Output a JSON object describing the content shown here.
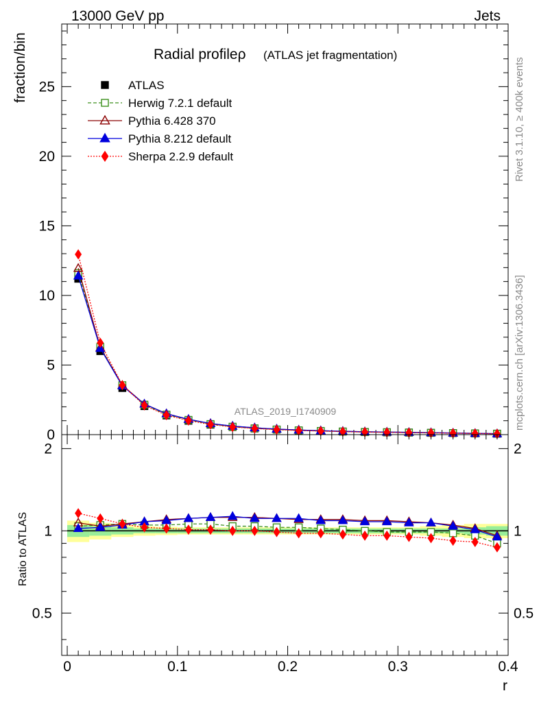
{
  "header": {
    "left_label": "13000 GeV pp",
    "right_label": "Jets",
    "title": "Radial profileρ",
    "title_suffix": "(ATLAS jet fragmentation)",
    "rivet_label": "Rivet 3.1.10, ≥ 400k events",
    "mcplots_label": "mcplots.cern.ch [arXiv:1306.3436]",
    "analysis_label": "ATLAS_2019_I1740909"
  },
  "legend": [
    {
      "name": "ATLAS",
      "color": "#000000",
      "marker": "square-filled",
      "line": "none"
    },
    {
      "name": "Herwig 7.2.1 default",
      "color": "#3a8f1b",
      "marker": "square-open",
      "line": "dashed"
    },
    {
      "name": "Pythia 6.428 370",
      "color": "#8b0000",
      "marker": "triangle-open",
      "line": "solid"
    },
    {
      "name": "Pythia 8.212 default",
      "color": "#0000dd",
      "marker": "triangle-filled",
      "line": "solid"
    },
    {
      "name": "Sherpa 2.2.9 default",
      "color": "#ff0000",
      "marker": "diamond-filled",
      "line": "dotted"
    }
  ],
  "chart_data": [
    {
      "type": "line",
      "panel": "main",
      "ylabel": "fraction/bin",
      "xlim": [
        -0.005,
        0.4
      ],
      "ylim": [
        0,
        29.5
      ],
      "yticks": [
        0,
        5,
        10,
        15,
        20,
        25
      ],
      "ytick_labels": [
        "0",
        "5",
        "10",
        "15",
        "20",
        "25"
      ],
      "x": [
        0.01,
        0.03,
        0.05,
        0.07,
        0.09,
        0.11,
        0.13,
        0.15,
        0.17,
        0.19,
        0.21,
        0.23,
        0.25,
        0.27,
        0.29,
        0.31,
        0.33,
        0.35,
        0.37,
        0.39
      ],
      "series": [
        {
          "name": "ATLAS",
          "values": [
            11.2,
            6.0,
            3.35,
            2.05,
            1.38,
            1.0,
            0.72,
            0.55,
            0.44,
            0.36,
            0.3,
            0.26,
            0.22,
            0.19,
            0.17,
            0.15,
            0.13,
            0.11,
            0.09,
            0.07
          ]
        },
        {
          "name": "Herwig 7.2.1 default",
          "values": [
            11.6,
            6.3,
            3.55,
            2.15,
            1.44,
            1.06,
            0.76,
            0.57,
            0.45,
            0.37,
            0.31,
            0.265,
            0.222,
            0.19,
            0.168,
            0.148,
            0.128,
            0.107,
            0.086,
            0.063
          ]
        },
        {
          "name": "Pythia 6.428 370",
          "values": [
            11.95,
            6.25,
            3.55,
            2.2,
            1.51,
            1.1,
            0.8,
            0.61,
            0.49,
            0.4,
            0.33,
            0.285,
            0.24,
            0.207,
            0.184,
            0.163,
            0.14,
            0.115,
            0.092,
            0.067
          ]
        },
        {
          "name": "Pythia 8.212 default",
          "values": [
            11.4,
            6.2,
            3.5,
            2.2,
            1.5,
            1.1,
            0.8,
            0.615,
            0.49,
            0.4,
            0.33,
            0.283,
            0.238,
            0.205,
            0.183,
            0.162,
            0.14,
            0.114,
            0.091,
            0.067
          ]
        },
        {
          "name": "Sherpa 2.2.9 default",
          "values": [
            12.95,
            6.6,
            3.55,
            2.1,
            1.4,
            1.01,
            0.73,
            0.55,
            0.44,
            0.355,
            0.295,
            0.255,
            0.214,
            0.183,
            0.164,
            0.143,
            0.122,
            0.102,
            0.082,
            0.061
          ]
        }
      ]
    },
    {
      "type": "line",
      "panel": "ratio",
      "xlabel": "r",
      "ylabel": "Ratio to ATLAS",
      "xlim": [
        -0.005,
        0.4
      ],
      "ylim": [
        0.35,
        2.25
      ],
      "yticks": [
        0.5,
        1,
        2
      ],
      "ytick_labels": [
        "0.5",
        "1",
        "2"
      ],
      "xticks": [
        0,
        0.1,
        0.2,
        0.3,
        0.4
      ],
      "xtick_labels": [
        "0",
        "0.1",
        "0.2",
        "0.3",
        "0.4"
      ],
      "x": [
        0.01,
        0.03,
        0.05,
        0.07,
        0.09,
        0.11,
        0.13,
        0.15,
        0.17,
        0.19,
        0.21,
        0.23,
        0.25,
        0.27,
        0.29,
        0.31,
        0.33,
        0.35,
        0.37,
        0.39
      ],
      "band_edges": [
        0.0,
        0.02,
        0.04,
        0.06,
        0.08,
        0.1,
        0.12,
        0.14,
        0.16,
        0.18,
        0.2,
        0.22,
        0.24,
        0.26,
        0.28,
        0.3,
        0.32,
        0.34,
        0.36,
        0.38,
        0.4
      ],
      "band_stat": [
        0.05,
        0.04,
        0.03,
        0.02,
        0.02,
        0.02,
        0.02,
        0.02,
        0.02,
        0.02,
        0.02,
        0.02,
        0.02,
        0.02,
        0.02,
        0.02,
        0.02,
        0.02,
        0.03,
        0.04
      ],
      "band_total": [
        0.09,
        0.07,
        0.05,
        0.04,
        0.035,
        0.03,
        0.03,
        0.03,
        0.03,
        0.03,
        0.03,
        0.03,
        0.03,
        0.03,
        0.03,
        0.03,
        0.04,
        0.05,
        0.06,
        0.06
      ],
      "series": [
        {
          "name": "Herwig 7.2.1 default",
          "values": [
            1.04,
            1.05,
            1.06,
            1.05,
            1.05,
            1.06,
            1.06,
            1.04,
            1.04,
            1.03,
            1.03,
            1.02,
            1.01,
            1.0,
            0.99,
            0.99,
            0.99,
            0.98,
            0.96,
            0.9
          ]
        },
        {
          "name": "Pythia 6.428 370",
          "values": [
            1.07,
            1.04,
            1.06,
            1.08,
            1.1,
            1.11,
            1.12,
            1.12,
            1.12,
            1.11,
            1.1,
            1.1,
            1.1,
            1.09,
            1.09,
            1.08,
            1.07,
            1.05,
            1.02,
            0.96
          ]
        },
        {
          "name": "Pythia 8.212 default",
          "values": [
            1.02,
            1.03,
            1.05,
            1.08,
            1.09,
            1.11,
            1.12,
            1.13,
            1.11,
            1.11,
            1.11,
            1.09,
            1.09,
            1.08,
            1.08,
            1.07,
            1.07,
            1.04,
            1.01,
            0.95
          ]
        },
        {
          "name": "Sherpa 2.2.9 default",
          "values": [
            1.16,
            1.11,
            1.06,
            1.03,
            1.02,
            1.01,
            1.01,
            1.0,
            1.0,
            0.99,
            0.98,
            0.98,
            0.97,
            0.96,
            0.96,
            0.95,
            0.94,
            0.92,
            0.91,
            0.87
          ]
        }
      ]
    }
  ]
}
